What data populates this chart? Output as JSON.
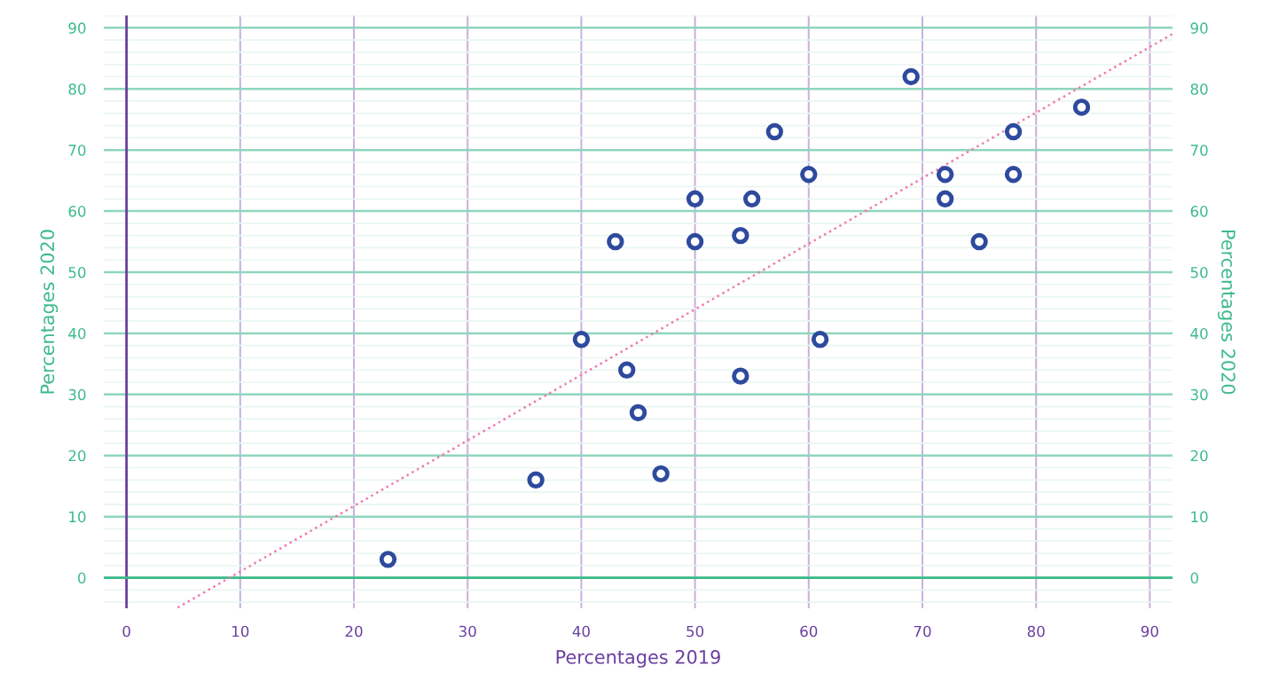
{
  "chart_data": {
    "type": "scatter",
    "xlabel": "Percentages 2019",
    "ylabel": "Percentages 2020",
    "y2label": "Percentages 2020",
    "series": [
      {
        "color": "#2e4a9e",
        "marker": "circle",
        "x": [
          23,
          36,
          40,
          43,
          44,
          45,
          47,
          50,
          50,
          54,
          54,
          55,
          57,
          60,
          61,
          69,
          72,
          72,
          75,
          78,
          78,
          84
        ],
        "values": [
          3,
          16,
          39,
          55,
          34,
          27,
          17,
          55,
          62,
          56,
          33,
          62,
          73,
          66,
          39,
          82,
          66,
          62,
          55,
          73,
          66,
          77
        ]
      },
      {
        "type": "line",
        "color": "#f07ab0",
        "line_style": "dotted",
        "x": [
          4.5,
          92
        ],
        "values": [
          -4.9,
          89
        ]
      }
    ],
    "xlim": [
      -2,
      92
    ],
    "xticks": [
      0,
      10,
      20,
      30,
      40,
      50,
      60,
      70,
      80,
      90
    ],
    "ylim": [
      -5,
      92
    ],
    "yticks": [
      0,
      10,
      20,
      30,
      40,
      50,
      60,
      70,
      80,
      90
    ],
    "y2lim": [
      -5,
      92
    ],
    "y2ticks": [
      0,
      10,
      20,
      30,
      40,
      50,
      60,
      70,
      80,
      90
    ],
    "ref_lines": [
      {
        "axis": "x",
        "value": 0,
        "color": "#6b3fa0"
      },
      {
        "axis": "y",
        "value": 0,
        "color": "#3dba8a"
      }
    ],
    "grid": true,
    "legend": false
  }
}
